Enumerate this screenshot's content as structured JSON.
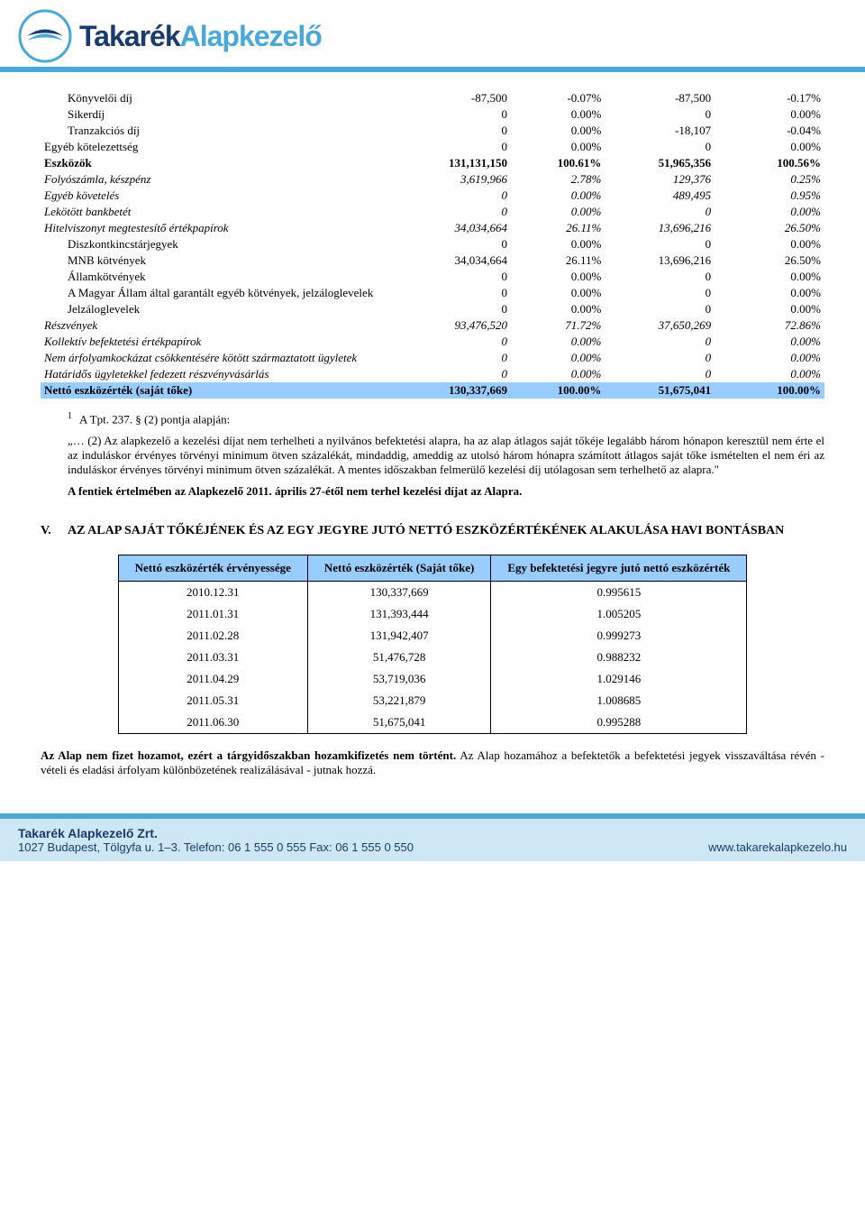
{
  "header": {
    "logo_a": "Takarék",
    "logo_b": "Alapkezelő"
  },
  "table": {
    "rows": [
      {
        "lbl": "Könyvelői díj",
        "v1": "-87,500",
        "p1": "-0.07%",
        "v2": "-87,500",
        "p2": "-0.17%",
        "cls": "pad1"
      },
      {
        "lbl": "Sikerdíj",
        "v1": "0",
        "p1": "0.00%",
        "v2": "0",
        "p2": "0.00%",
        "cls": "pad1"
      },
      {
        "lbl": "Tranzakciós díj",
        "v1": "0",
        "p1": "0.00%",
        "v2": "-18,107",
        "p2": "-0.04%",
        "cls": "pad1"
      },
      {
        "lbl": "Egyéb kötelezettség",
        "v1": "0",
        "p1": "0.00%",
        "v2": "0",
        "p2": "0.00%",
        "cls": ""
      },
      {
        "lbl": "Eszközök",
        "v1": "131,131,150",
        "p1": "100.61%",
        "v2": "51,965,356",
        "p2": "100.56%",
        "cls": "bold"
      },
      {
        "lbl": "Folyószámla, készpénz",
        "v1": "3,619,966",
        "p1": "2.78%",
        "v2": "129,376",
        "p2": "0.25%",
        "cls": "italic"
      },
      {
        "lbl": "Egyéb követelés",
        "v1": "0",
        "p1": "0.00%",
        "v2": "489,495",
        "p2": "0.95%",
        "cls": "italic"
      },
      {
        "lbl": "Lekötött bankbetét",
        "v1": "0",
        "p1": "0.00%",
        "v2": "0",
        "p2": "0.00%",
        "cls": "italic"
      },
      {
        "lbl": "Hitelviszonyt megtestesítő értékpapírok",
        "v1": "34,034,664",
        "p1": "26.11%",
        "v2": "13,696,216",
        "p2": "26.50%",
        "cls": "italic"
      },
      {
        "lbl": "Diszkontkincstárjegyek",
        "v1": "0",
        "p1": "0.00%",
        "v2": "0",
        "p2": "0.00%",
        "cls": "pad1"
      },
      {
        "lbl": "MNB kötvények",
        "v1": "34,034,664",
        "p1": "26.11%",
        "v2": "13,696,216",
        "p2": "26.50%",
        "cls": "pad1"
      },
      {
        "lbl": "Államkötvények",
        "v1": "0",
        "p1": "0.00%",
        "v2": "0",
        "p2": "0.00%",
        "cls": "pad1"
      },
      {
        "lbl": "A Magyar Állam által garantált egyéb kötvények, jelzáloglevelek",
        "v1": "0",
        "p1": "0.00%",
        "v2": "0",
        "p2": "0.00%",
        "cls": "pad1"
      },
      {
        "lbl": "Jelzáloglevelek",
        "v1": "0",
        "p1": "0.00%",
        "v2": "0",
        "p2": "0.00%",
        "cls": "pad1"
      },
      {
        "lbl": "Részvények",
        "v1": "93,476,520",
        "p1": "71.72%",
        "v2": "37,650,269",
        "p2": "72.86%",
        "cls": "italic"
      },
      {
        "lbl": "Kollektív befektetési értékpapírok",
        "v1": "0",
        "p1": "0.00%",
        "v2": "0",
        "p2": "0.00%",
        "cls": "italic"
      },
      {
        "lbl": "Nem árfolyamkockázat csökkentésére kötött származtatott ügyletek",
        "v1": "0",
        "p1": "0.00%",
        "v2": "0",
        "p2": "0.00%",
        "cls": "italic"
      },
      {
        "lbl": "Határidős ügyletekkel fedezett részvényvásárlás",
        "v1": "0",
        "p1": "0.00%",
        "v2": "0",
        "p2": "0.00%",
        "cls": "italic"
      },
      {
        "lbl": "Nettó eszközérték (saját tőke)",
        "v1": "130,337,669",
        "p1": "100.00%",
        "v2": "51,675,041",
        "p2": "100.00%",
        "cls": "highlight"
      }
    ]
  },
  "footnote": {
    "sup": "1",
    "intro": "A Tpt. 237. § (2) pontja alapján:",
    "body": "„… (2) Az alapkezelő a kezelési díjat nem terhelheti a nyilvános befektetési alapra, ha az alap átlagos saját tőkéje legalább három hónapon keresztül nem érte el az induláskor érvényes törvényi minimum ötven százalékát, mindaddig, ameddig az utolsó három hónapra számított átlagos saját tőke ismételten el nem éri az induláskor érvényes törvényi minimum ötven százalékát. A mentes időszakban felmerülő kezelési díj utólagosan sem terhelhető az alapra.\"",
    "bold_line": "A fentiek értelmében az Alapkezelő 2011. április 27-étől nem terhel kezelési díjat az Alapra."
  },
  "section": {
    "roman": "V.",
    "title": "AZ ALAP SAJÁT TŐKÉJÉNEK ÉS AZ EGY JEGYRE JUTÓ NETTÓ ESZKÖZÉRTÉKÉNEK ALAKULÁSA HAVI BONTÁSBAN"
  },
  "nav_table": {
    "headers": [
      "Nettó eszközérték érvényessége",
      "Nettó eszközérték (Saját tőke)",
      "Egy befektetési jegyre jutó nettó eszközérték"
    ],
    "rows": [
      [
        "2010.12.31",
        "130,337,669",
        "0.995615"
      ],
      [
        "2011.01.31",
        "131,393,444",
        "1.005205"
      ],
      [
        "2011.02.28",
        "131,942,407",
        "0.999273"
      ],
      [
        "2011.03.31",
        "51,476,728",
        "0.988232"
      ],
      [
        "2011.04.29",
        "53,719,036",
        "1.029146"
      ],
      [
        "2011.05.31",
        "53,221,879",
        "1.008685"
      ],
      [
        "2011.06.30",
        "51,675,041",
        "0.995288"
      ]
    ]
  },
  "bottom": {
    "bold": "Az Alap nem fizet hozamot, ezért a tárgyidőszakban hozamkifizetés nem történt.",
    "rest": " Az Alap hozamához a befektetők a befektetési jegyek visszaváltása révén - vételi és eladási árfolyam különbözetének realizálásával - jutnak hozzá."
  },
  "footer": {
    "company": "Takarék Alapkezelő Zrt.",
    "addr": "1027 Budapest, Tölgyfa u. 1–3.   Telefon: 06 1 555 0 555   Fax: 06 1 555 0 550",
    "url": "www.takarekalapkezelo.hu"
  }
}
